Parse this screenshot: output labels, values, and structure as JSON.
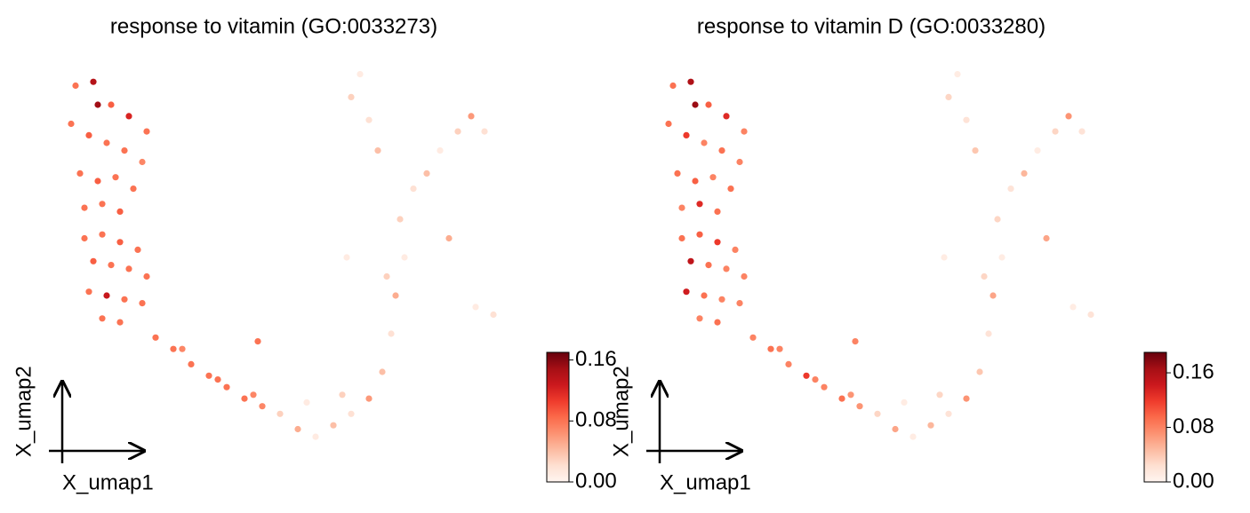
{
  "chart_data": [
    {
      "type": "scatter",
      "title": "response to vitamin (GO:0033273)",
      "xlabel": "X_umap1",
      "ylabel": "X_umap2",
      "cmap": "Reds",
      "xlim": [
        0,
        10
      ],
      "ylim": [
        0,
        10
      ],
      "clim": [
        0,
        0.17
      ],
      "cticks": [
        {
          "value": 0,
          "label": "0.00"
        },
        {
          "value": 0.08,
          "label": "0.08"
        },
        {
          "value": 0.16,
          "label": "0.16"
        }
      ],
      "x": [
        0.4,
        0.8,
        1.2,
        1.6,
        2.0,
        0.3,
        0.7,
        1.1,
        1.5,
        1.9,
        0.5,
        0.9,
        1.3,
        1.7,
        0.6,
        1.0,
        1.4,
        0.9,
        0.6,
        1.0,
        1.4,
        1.8,
        0.8,
        1.2,
        1.6,
        2.0,
        0.7,
        1.1,
        1.5,
        1.9,
        1.0,
        1.4,
        2.2,
        2.6,
        3.0,
        3.4,
        3.8,
        4.2,
        4.6,
        2.8,
        3.6,
        4.4,
        4.5,
        5.0,
        5.4,
        5.8,
        6.2,
        6.6,
        7.0,
        5.6,
        6.4,
        7.3,
        7.5,
        7.6,
        7.8,
        7.7,
        8.0,
        8.3,
        8.6,
        9.0,
        9.3,
        9.6,
        6.8,
        6.6,
        7.0,
        7.2,
        9.8,
        9.4,
        8.8,
        6.5,
        7.4
      ],
      "values": [
        9.5,
        9.6,
        9.0,
        8.7,
        8.3,
        8.5,
        8.2,
        8.0,
        7.8,
        7.5,
        7.2,
        7.0,
        7.1,
        6.8,
        6.3,
        6.4,
        6.2,
        9.0,
        5.5,
        5.6,
        5.4,
        5.2,
        4.9,
        4.8,
        4.7,
        4.5,
        4.1,
        4.0,
        3.9,
        3.8,
        3.4,
        3.3,
        2.9,
        2.6,
        2.2,
        1.9,
        1.6,
        1.3,
        1.1,
        2.6,
        1.8,
        1.4,
        2.8,
        0.9,
        0.5,
        0.3,
        0.6,
        0.9,
        1.3,
        1.2,
        1.4,
        2.0,
        3.0,
        4.0,
        5.0,
        6.0,
        6.8,
        7.2,
        7.8,
        8.3,
        8.7,
        8.3,
        9.8,
        9.2,
        8.6,
        7.8,
        3.5,
        3.7,
        5.5,
        5.0,
        4.5
      ],
      "color_values": [
        0.08,
        0.14,
        0.09,
        0.12,
        0.08,
        0.08,
        0.09,
        0.08,
        0.08,
        0.07,
        0.08,
        0.09,
        0.08,
        0.08,
        0.08,
        0.08,
        0.09,
        0.15,
        0.08,
        0.08,
        0.09,
        0.08,
        0.09,
        0.08,
        0.08,
        0.08,
        0.08,
        0.13,
        0.08,
        0.08,
        0.08,
        0.08,
        0.08,
        0.08,
        0.08,
        0.08,
        0.08,
        0.08,
        0.07,
        0.07,
        0.08,
        0.07,
        0.08,
        0.03,
        0.05,
        0.01,
        0.04,
        0.02,
        0.06,
        0.01,
        0.03,
        0.04,
        0.02,
        0.05,
        0.01,
        0.03,
        0.02,
        0.04,
        0.01,
        0.03,
        0.06,
        0.02,
        0.01,
        0.03,
        0.02,
        0.04,
        0.02,
        0.01,
        0.05,
        0.01,
        0.03
      ]
    },
    {
      "type": "scatter",
      "title": "response to vitamin D (GO:0033280)",
      "xlabel": "X_umap1",
      "ylabel": "X_umap2",
      "cmap": "Reds",
      "xlim": [
        0,
        10
      ],
      "ylim": [
        0,
        10
      ],
      "clim": [
        0,
        0.19
      ],
      "cticks": [
        {
          "value": 0,
          "label": "0.00"
        },
        {
          "value": 0.08,
          "label": "0.08"
        },
        {
          "value": 0.16,
          "label": "0.16"
        }
      ],
      "x": [
        0.4,
        0.8,
        1.2,
        1.6,
        2.0,
        0.3,
        0.7,
        1.1,
        1.5,
        1.9,
        0.5,
        0.9,
        1.3,
        1.7,
        0.6,
        1.0,
        1.4,
        0.9,
        0.6,
        1.0,
        1.4,
        1.8,
        0.8,
        1.2,
        1.6,
        2.0,
        0.7,
        1.1,
        1.5,
        1.9,
        1.0,
        1.4,
        2.2,
        2.6,
        3.0,
        3.4,
        3.8,
        4.2,
        4.6,
        2.8,
        3.6,
        4.4,
        4.5,
        5.0,
        5.4,
        5.8,
        6.2,
        6.6,
        7.0,
        5.6,
        6.4,
        7.3,
        7.5,
        7.6,
        7.8,
        7.7,
        8.0,
        8.3,
        8.6,
        9.0,
        9.3,
        9.6,
        6.8,
        6.6,
        7.0,
        7.2,
        9.8,
        9.4,
        8.8,
        6.5,
        7.4
      ],
      "values": [
        9.5,
        9.6,
        9.0,
        8.7,
        8.3,
        8.5,
        8.2,
        8.0,
        7.8,
        7.5,
        7.2,
        7.0,
        7.1,
        6.8,
        6.3,
        6.4,
        6.2,
        9.0,
        5.5,
        5.6,
        5.4,
        5.2,
        4.9,
        4.8,
        4.7,
        4.5,
        4.1,
        4.0,
        3.9,
        3.8,
        3.4,
        3.3,
        2.9,
        2.6,
        2.2,
        1.9,
        1.6,
        1.3,
        1.1,
        2.6,
        1.8,
        1.4,
        2.8,
        0.9,
        0.5,
        0.3,
        0.6,
        0.9,
        1.3,
        1.2,
        1.4,
        2.0,
        3.0,
        4.0,
        5.0,
        6.0,
        6.8,
        7.2,
        7.8,
        8.3,
        8.7,
        8.3,
        9.8,
        9.2,
        8.6,
        7.8,
        3.5,
        3.7,
        5.5,
        5.0,
        4.5
      ],
      "color_values": [
        0.09,
        0.16,
        0.1,
        0.13,
        0.08,
        0.09,
        0.12,
        0.08,
        0.09,
        0.08,
        0.09,
        0.1,
        0.08,
        0.09,
        0.08,
        0.13,
        0.09,
        0.17,
        0.09,
        0.1,
        0.12,
        0.08,
        0.15,
        0.09,
        0.08,
        0.08,
        0.14,
        0.09,
        0.08,
        0.08,
        0.08,
        0.09,
        0.08,
        0.09,
        0.08,
        0.12,
        0.08,
        0.09,
        0.07,
        0.08,
        0.08,
        0.07,
        0.08,
        0.03,
        0.06,
        0.01,
        0.05,
        0.02,
        0.07,
        0.01,
        0.03,
        0.04,
        0.02,
        0.06,
        0.01,
        0.03,
        0.02,
        0.05,
        0.01,
        0.03,
        0.07,
        0.02,
        0.01,
        0.03,
        0.02,
        0.04,
        0.02,
        0.01,
        0.06,
        0.01,
        0.03
      ]
    }
  ]
}
